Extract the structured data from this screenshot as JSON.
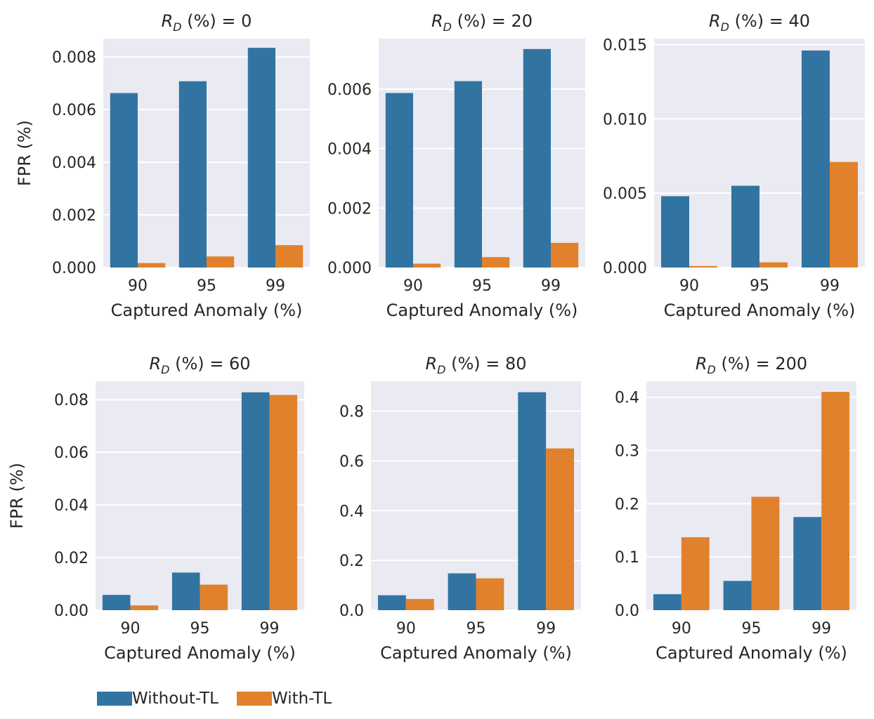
{
  "legend": {
    "without_label": "Without-TL",
    "with_label": "With-TL",
    "without_color": "#3274a1",
    "with_color": "#e1812c"
  },
  "chart_data": [
    {
      "type": "bar",
      "title_prefix": "R",
      "title_sub": "D",
      "title_suffix": " (%) = 0",
      "xlabel": "Captured Anomaly (%)",
      "ylabel": "FPR (%)",
      "categories": [
        "90",
        "95",
        "99"
      ],
      "ylim": [
        0,
        0.0087
      ],
      "yticks": [
        "0.000",
        "0.002",
        "0.004",
        "0.006",
        "0.008"
      ],
      "ytick_values": [
        0,
        0.002,
        0.004,
        0.006,
        0.008
      ],
      "grid": true,
      "series": [
        {
          "name": "Without-TL",
          "color": "#3274a1",
          "values": [
            0.00663,
            0.00708,
            0.00835
          ]
        },
        {
          "name": "With-TL",
          "color": "#e1812c",
          "values": [
            0.00017,
            0.00042,
            0.00085
          ]
        }
      ]
    },
    {
      "type": "bar",
      "title_prefix": "R",
      "title_sub": "D",
      "title_suffix": " (%) = 20",
      "xlabel": "Captured Anomaly (%)",
      "ylabel": "",
      "categories": [
        "90",
        "95",
        "99"
      ],
      "ylim": [
        0,
        0.0077
      ],
      "yticks": [
        "0.000",
        "0.002",
        "0.004",
        "0.006"
      ],
      "ytick_values": [
        0,
        0.002,
        0.004,
        0.006
      ],
      "grid": true,
      "series": [
        {
          "name": "Without-TL",
          "color": "#3274a1",
          "values": [
            0.00587,
            0.00627,
            0.00735
          ]
        },
        {
          "name": "With-TL",
          "color": "#e1812c",
          "values": [
            0.00013,
            0.00035,
            0.00083
          ]
        }
      ]
    },
    {
      "type": "bar",
      "title_prefix": "R",
      "title_sub": "D",
      "title_suffix": " (%) = 40",
      "xlabel": "Captured Anomaly (%)",
      "ylabel": "",
      "categories": [
        "90",
        "95",
        "99"
      ],
      "ylim": [
        0,
        0.0154
      ],
      "yticks": [
        "0.000",
        "0.005",
        "0.010",
        "0.015"
      ],
      "ytick_values": [
        0,
        0.005,
        0.01,
        0.015
      ],
      "grid": true,
      "series": [
        {
          "name": "Without-TL",
          "color": "#3274a1",
          "values": [
            0.0048,
            0.0055,
            0.0146
          ]
        },
        {
          "name": "With-TL",
          "color": "#e1812c",
          "values": [
            0.0001,
            0.00035,
            0.0071
          ]
        }
      ]
    },
    {
      "type": "bar",
      "title_prefix": "R",
      "title_sub": "D",
      "title_suffix": " (%) = 60",
      "xlabel": "Captured Anomaly (%)",
      "ylabel": "FPR (%)",
      "categories": [
        "90",
        "95",
        "99"
      ],
      "ylim": [
        0,
        0.087
      ],
      "yticks": [
        "0.00",
        "0.02",
        "0.04",
        "0.06",
        "0.08"
      ],
      "ytick_values": [
        0,
        0.02,
        0.04,
        0.06,
        0.08
      ],
      "grid": true,
      "series": [
        {
          "name": "Without-TL",
          "color": "#3274a1",
          "values": [
            0.0058,
            0.0143,
            0.0828
          ]
        },
        {
          "name": "With-TL",
          "color": "#e1812c",
          "values": [
            0.0018,
            0.0097,
            0.0818
          ]
        }
      ]
    },
    {
      "type": "bar",
      "title_prefix": "R",
      "title_sub": "D",
      "title_suffix": " (%) = 80",
      "xlabel": "Captured Anomaly (%)",
      "ylabel": "",
      "categories": [
        "90",
        "95",
        "99"
      ],
      "ylim": [
        0,
        0.92
      ],
      "yticks": [
        "0.0",
        "0.2",
        "0.4",
        "0.6",
        "0.8"
      ],
      "ytick_values": [
        0,
        0.2,
        0.4,
        0.6,
        0.8
      ],
      "grid": true,
      "series": [
        {
          "name": "Without-TL",
          "color": "#3274a1",
          "values": [
            0.06,
            0.148,
            0.876
          ]
        },
        {
          "name": "With-TL",
          "color": "#e1812c",
          "values": [
            0.045,
            0.128,
            0.65
          ]
        }
      ]
    },
    {
      "type": "bar",
      "title_prefix": "R",
      "title_sub": "D",
      "title_suffix": " (%) = 200",
      "xlabel": "Captured Anomaly (%)",
      "ylabel": "",
      "categories": [
        "90",
        "95",
        "99"
      ],
      "ylim": [
        0,
        0.43
      ],
      "yticks": [
        "0.0",
        "0.1",
        "0.2",
        "0.3",
        "0.4"
      ],
      "ytick_values": [
        0,
        0.1,
        0.2,
        0.3,
        0.4
      ],
      "grid": true,
      "series": [
        {
          "name": "Without-TL",
          "color": "#3274a1",
          "values": [
            0.03,
            0.055,
            0.175
          ]
        },
        {
          "name": "With-TL",
          "color": "#e1812c",
          "values": [
            0.137,
            0.213,
            0.41
          ]
        }
      ]
    }
  ]
}
